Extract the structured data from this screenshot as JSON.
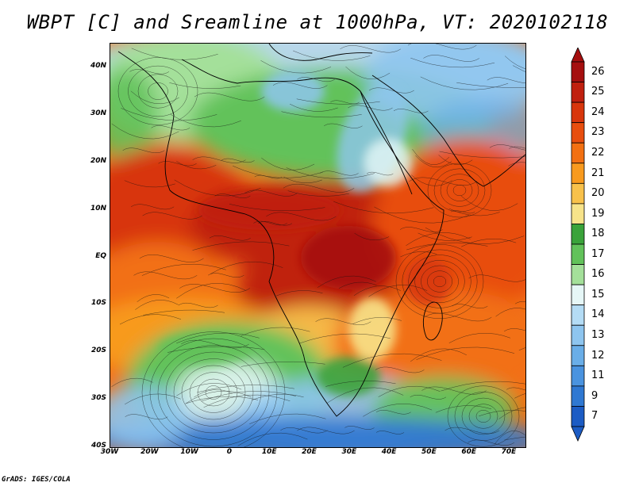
{
  "title": "WBPT [C] and Sreamline at 1000hPa, VT: 2020102118",
  "footer": "GrADS: IGES/COLA",
  "map": {
    "lat_labels": [
      "40N",
      "30N",
      "20N",
      "10N",
      "EQ",
      "10S",
      "20S",
      "30S",
      "40S"
    ],
    "lon_labels": [
      "30W",
      "20W",
      "10W",
      "0",
      "10E",
      "20E",
      "30E",
      "40E",
      "50E",
      "60E",
      "70E"
    ]
  },
  "colorbar": {
    "levels": [
      "26",
      "25",
      "24",
      "23",
      "22",
      "21",
      "20",
      "19",
      "18",
      "17",
      "16",
      "15",
      "14",
      "13",
      "12",
      "11",
      "9",
      "7"
    ],
    "colors": [
      "#a50f0f",
      "#c0200f",
      "#d8360c",
      "#e84e0e",
      "#f27012",
      "#f89a1e",
      "#f8c14b",
      "#f7e38a",
      "#3aa33a",
      "#62c25a",
      "#a4e09a",
      "#e6f7f7",
      "#b4dcf5",
      "#8ec5ef",
      "#6aaee8",
      "#4a93df",
      "#2f78d2",
      "#1c5cc4"
    ]
  }
}
